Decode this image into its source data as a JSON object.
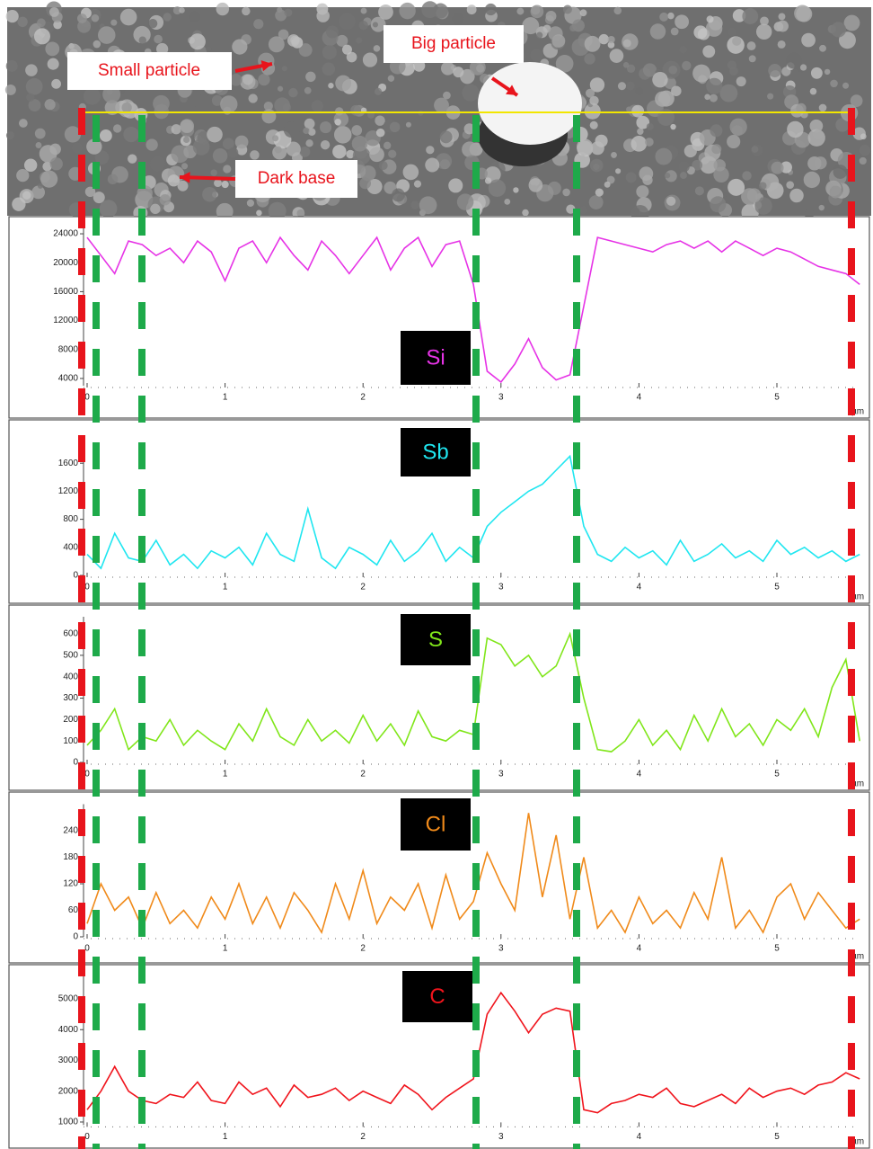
{
  "image": {
    "annotations": [
      "Small particle",
      "Big particle",
      "Dark base"
    ]
  },
  "chart_data": [
    {
      "type": "line",
      "xlabel": "µm",
      "xlim": [
        0,
        5.6
      ],
      "xticks": [
        0,
        1,
        2,
        3,
        4,
        5
      ],
      "ylim": [
        3000,
        25000
      ],
      "yticks": [
        4000,
        8000,
        12000,
        16000,
        20000,
        24000
      ],
      "x": [
        0,
        0.1,
        0.2,
        0.3,
        0.4,
        0.5,
        0.6,
        0.7,
        0.8,
        0.9,
        1,
        1.1,
        1.2,
        1.3,
        1.4,
        1.5,
        1.6,
        1.7,
        1.8,
        1.9,
        2,
        2.1,
        2.2,
        2.3,
        2.4,
        2.5,
        2.6,
        2.7,
        2.8,
        2.9,
        3,
        3.1,
        3.2,
        3.3,
        3.4,
        3.5,
        3.6,
        3.7,
        3.8,
        3.9,
        4,
        4.1,
        4.2,
        4.3,
        4.4,
        4.5,
        4.6,
        4.7,
        4.8,
        4.9,
        5,
        5.1,
        5.2,
        5.3,
        5.4,
        5.5,
        5.6
      ],
      "series": [
        {
          "name": "Si",
          "color": "#e633e6",
          "values": [
            23500,
            21000,
            18500,
            23000,
            22500,
            21000,
            22000,
            20000,
            23000,
            21500,
            17500,
            22000,
            23000,
            20000,
            23500,
            21000,
            19000,
            23000,
            21000,
            18500,
            21000,
            23500,
            19000,
            22000,
            23500,
            19500,
            22500,
            23000,
            17000,
            5000,
            3500,
            6000,
            9500,
            5500,
            3800,
            4500,
            14000,
            23500,
            23000,
            22500,
            22000,
            21500,
            22500,
            23000,
            22000,
            23000,
            21500,
            23000,
            22000,
            21000,
            22000,
            21500,
            20500,
            19500,
            19000,
            18500,
            17000
          ]
        }
      ]
    },
    {
      "type": "line",
      "xlabel": "µm",
      "xlim": [
        0,
        5.6
      ],
      "xticks": [
        0,
        1,
        2,
        3,
        4,
        5
      ],
      "ylim": [
        0,
        2000
      ],
      "yticks": [
        0,
        400,
        800,
        1200,
        1600
      ],
      "x": [
        0,
        0.1,
        0.2,
        0.3,
        0.4,
        0.5,
        0.6,
        0.7,
        0.8,
        0.9,
        1,
        1.1,
        1.2,
        1.3,
        1.4,
        1.5,
        1.6,
        1.7,
        1.8,
        1.9,
        2,
        2.1,
        2.2,
        2.3,
        2.4,
        2.5,
        2.6,
        2.7,
        2.8,
        2.9,
        3,
        3.1,
        3.2,
        3.3,
        3.4,
        3.5,
        3.6,
        3.7,
        3.8,
        3.9,
        4,
        4.1,
        4.2,
        4.3,
        4.4,
        4.5,
        4.6,
        4.7,
        4.8,
        4.9,
        5,
        5.1,
        5.2,
        5.3,
        5.4,
        5.5,
        5.6
      ],
      "series": [
        {
          "name": "Sb",
          "color": "#1fe6f0",
          "values": [
            300,
            100,
            600,
            250,
            200,
            500,
            150,
            300,
            100,
            350,
            250,
            400,
            150,
            600,
            300,
            200,
            950,
            250,
            100,
            400,
            300,
            150,
            500,
            200,
            350,
            600,
            200,
            400,
            250,
            700,
            900,
            1050,
            1200,
            1300,
            1500,
            1700,
            700,
            300,
            200,
            400,
            250,
            350,
            150,
            500,
            200,
            300,
            450,
            250,
            350,
            200,
            500,
            300,
            400,
            250,
            350,
            200,
            300
          ]
        }
      ]
    },
    {
      "type": "line",
      "xlabel": "µm",
      "xlim": [
        0,
        5.6
      ],
      "xticks": [
        0,
        1,
        2,
        3,
        4,
        5
      ],
      "ylim": [
        0,
        680
      ],
      "yticks": [
        0,
        100,
        200,
        300,
        400,
        500,
        600
      ],
      "x": [
        0,
        0.1,
        0.2,
        0.3,
        0.4,
        0.5,
        0.6,
        0.7,
        0.8,
        0.9,
        1,
        1.1,
        1.2,
        1.3,
        1.4,
        1.5,
        1.6,
        1.7,
        1.8,
        1.9,
        2,
        2.1,
        2.2,
        2.3,
        2.4,
        2.5,
        2.6,
        2.7,
        2.8,
        2.9,
        3,
        3.1,
        3.2,
        3.3,
        3.4,
        3.5,
        3.6,
        3.7,
        3.8,
        3.9,
        4,
        4.1,
        4.2,
        4.3,
        4.4,
        4.5,
        4.6,
        4.7,
        4.8,
        4.9,
        5,
        5.1,
        5.2,
        5.3,
        5.4,
        5.5,
        5.6
      ],
      "series": [
        {
          "name": "S",
          "color": "#80e61a",
          "values": [
            80,
            150,
            250,
            60,
            120,
            100,
            200,
            80,
            150,
            100,
            60,
            180,
            100,
            250,
            120,
            80,
            200,
            100,
            150,
            90,
            220,
            100,
            180,
            80,
            240,
            120,
            100,
            150,
            130,
            580,
            550,
            450,
            500,
            400,
            450,
            600,
            300,
            60,
            50,
            100,
            200,
            80,
            150,
            60,
            220,
            100,
            250,
            120,
            180,
            80,
            200,
            150,
            250,
            120,
            350,
            480,
            100
          ]
        }
      ]
    },
    {
      "type": "line",
      "xlabel": "µm",
      "xlim": [
        0,
        5.6
      ],
      "xticks": [
        0,
        1,
        2,
        3,
        4,
        5
      ],
      "ylim": [
        0,
        300
      ],
      "yticks": [
        0,
        60,
        120,
        180,
        240
      ],
      "x": [
        0,
        0.1,
        0.2,
        0.3,
        0.4,
        0.5,
        0.6,
        0.7,
        0.8,
        0.9,
        1,
        1.1,
        1.2,
        1.3,
        1.4,
        1.5,
        1.6,
        1.7,
        1.8,
        1.9,
        2,
        2.1,
        2.2,
        2.3,
        2.4,
        2.5,
        2.6,
        2.7,
        2.8,
        2.9,
        3,
        3.1,
        3.2,
        3.3,
        3.4,
        3.5,
        3.6,
        3.7,
        3.8,
        3.9,
        4,
        4.1,
        4.2,
        4.3,
        4.4,
        4.5,
        4.6,
        4.7,
        4.8,
        4.9,
        5,
        5.1,
        5.2,
        5.3,
        5.4,
        5.5,
        5.6
      ],
      "series": [
        {
          "name": "Cl",
          "color": "#f08a1a",
          "values": [
            30,
            120,
            60,
            90,
            20,
            100,
            30,
            60,
            20,
            90,
            40,
            120,
            30,
            90,
            20,
            100,
            60,
            10,
            120,
            40,
            150,
            30,
            90,
            60,
            120,
            20,
            140,
            40,
            80,
            190,
            120,
            60,
            280,
            90,
            230,
            40,
            180,
            20,
            60,
            10,
            90,
            30,
            60,
            20,
            100,
            40,
            180,
            20,
            60,
            10,
            90,
            120,
            40,
            100,
            60,
            20,
            40
          ]
        }
      ]
    },
    {
      "type": "line",
      "xlabel": "µm",
      "xlim": [
        0,
        5.6
      ],
      "xticks": [
        0,
        1,
        2,
        3,
        4,
        5
      ],
      "ylim": [
        900,
        5800
      ],
      "yticks": [
        1000,
        2000,
        3000,
        4000,
        5000
      ],
      "x": [
        0,
        0.1,
        0.2,
        0.3,
        0.4,
        0.5,
        0.6,
        0.7,
        0.8,
        0.9,
        1,
        1.1,
        1.2,
        1.3,
        1.4,
        1.5,
        1.6,
        1.7,
        1.8,
        1.9,
        2,
        2.1,
        2.2,
        2.3,
        2.4,
        2.5,
        2.6,
        2.7,
        2.8,
        2.9,
        3,
        3.1,
        3.2,
        3.3,
        3.4,
        3.5,
        3.6,
        3.7,
        3.8,
        3.9,
        4,
        4.1,
        4.2,
        4.3,
        4.4,
        4.5,
        4.6,
        4.7,
        4.8,
        4.9,
        5,
        5.1,
        5.2,
        5.3,
        5.4,
        5.5,
        5.6
      ],
      "series": [
        {
          "name": "C",
          "color": "#f0141c",
          "values": [
            1400,
            2000,
            2800,
            2000,
            1700,
            1600,
            1900,
            1800,
            2300,
            1700,
            1600,
            2300,
            1900,
            2100,
            1500,
            2200,
            1800,
            1900,
            2100,
            1700,
            2000,
            1800,
            1600,
            2200,
            1900,
            1400,
            1800,
            2100,
            2400,
            4500,
            5200,
            4600,
            3900,
            4500,
            4700,
            4600,
            1400,
            1300,
            1600,
            1700,
            1900,
            1800,
            2100,
            1600,
            1500,
            1700,
            1900,
            1600,
            2100,
            1800,
            2000,
            2100,
            1900,
            2200,
            2300,
            2600,
            2400
          ]
        }
      ]
    }
  ]
}
